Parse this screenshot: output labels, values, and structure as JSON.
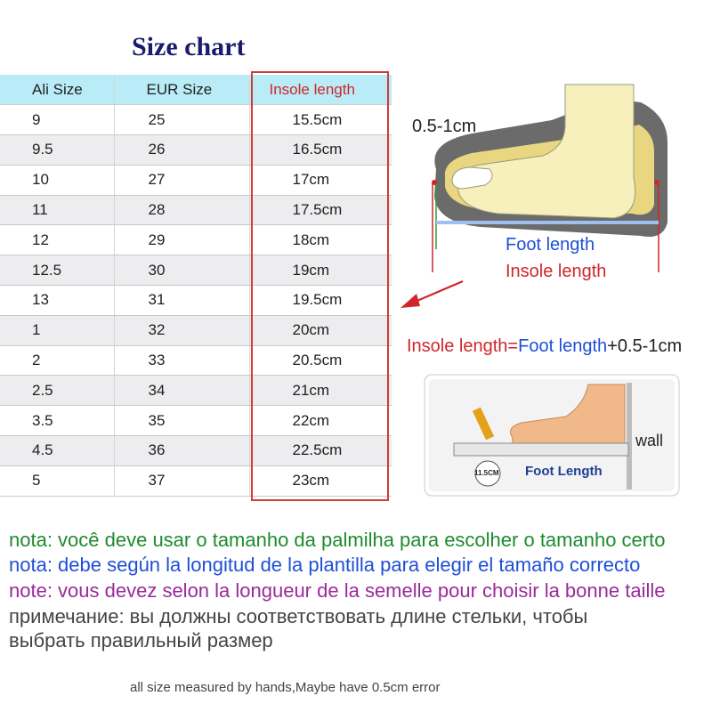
{
  "title": "Size chart",
  "table": {
    "headers": [
      "Ali Size",
      "EUR Size",
      "Insole length"
    ],
    "rows": [
      [
        "9",
        "25",
        "15.5cm"
      ],
      [
        "9.5",
        "26",
        "16.5cm"
      ],
      [
        "10",
        "27",
        "17cm"
      ],
      [
        "11",
        "28",
        "17.5cm"
      ],
      [
        "12",
        "29",
        "18cm"
      ],
      [
        "12.5",
        "30",
        "19cm"
      ],
      [
        "13",
        "31",
        "19.5cm"
      ],
      [
        "1",
        "32",
        "20cm"
      ],
      [
        "2",
        "33",
        "20.5cm"
      ],
      [
        "2.5",
        "34",
        "21cm"
      ],
      [
        "3.5",
        "35",
        "22cm"
      ],
      [
        "4.5",
        "36",
        "22.5cm"
      ],
      [
        "5",
        "37",
        "23cm"
      ]
    ]
  },
  "diagram": {
    "gap_label": "0.5-1cm",
    "foot_length": "Foot length",
    "insole_length": "Insole length",
    "formula": {
      "part1": "Insole length",
      "op1": "=",
      "part2": "Foot length",
      "op2": "+",
      "part3": "0.5-1cm"
    },
    "measure": {
      "ruler_label": "Foot Length",
      "badge": "11.5CM",
      "wall": "wall"
    }
  },
  "notes": {
    "portuguese": "nota: você deve usar o tamanho da palmilha para escolher o tamanho certo",
    "spanish": "nota: debe según la longitud de la plantilla para elegir el tamaño correcto",
    "french": "note: vous devez selon la longueur de la semelle pour choisir la bonne taille",
    "russian_line1": "примечание: вы должны соответствовать длине стельки, чтобы",
    "russian_line2": "выбрать правильный размер"
  },
  "footer": "all size measured by hands,Maybe have 0.5cm error",
  "colors": {
    "header_bg": "#b9ecf6",
    "highlight": "#d0262b",
    "blue_text": "#1f4fd6",
    "green_note": "#1e8b2e",
    "purple_note": "#9a2a9a"
  }
}
